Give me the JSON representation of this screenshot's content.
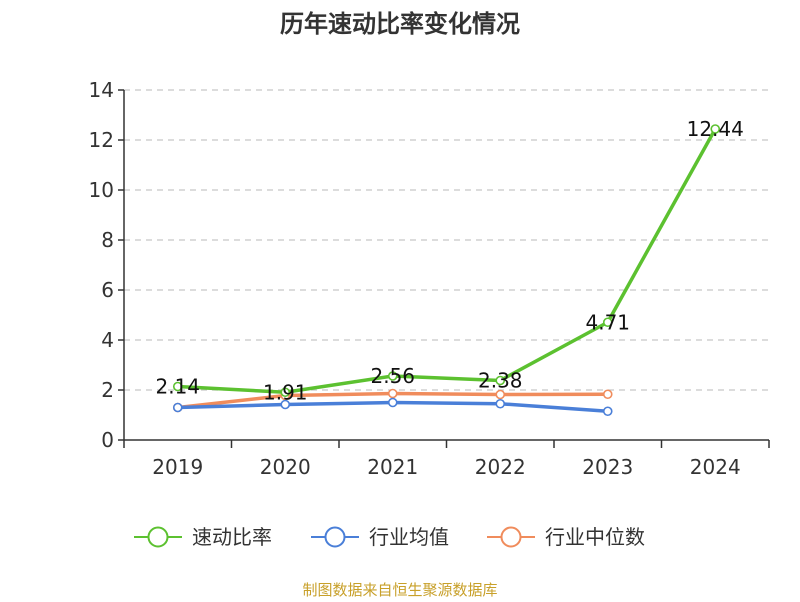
{
  "chart_data": {
    "type": "line",
    "title": "历年速动比率变化情况",
    "categories": [
      "2019",
      "2020",
      "2021",
      "2022",
      "2023",
      "2024"
    ],
    "ylim": [
      0,
      14
    ],
    "yticks": [
      0,
      2,
      4,
      6,
      8,
      10,
      12,
      14
    ],
    "grid": true,
    "legend_position": "bottom",
    "series": [
      {
        "name": "速动比率",
        "color": "#5cc130",
        "values": [
          2.14,
          1.91,
          2.56,
          2.38,
          4.71,
          12.44
        ],
        "labels": [
          "2.14",
          "1.91",
          "2.56",
          "2.38",
          "4.71",
          "12.44"
        ],
        "show_labels": true
      },
      {
        "name": "行业均值",
        "color": "#4a7fd8",
        "values": [
          1.3,
          1.42,
          1.5,
          1.45,
          1.15,
          null
        ],
        "show_labels": false
      },
      {
        "name": "行业中位数",
        "color": "#f08c5c",
        "values": [
          1.3,
          1.78,
          1.86,
          1.82,
          1.83,
          null
        ],
        "show_labels": false
      }
    ]
  },
  "footer": {
    "source": "制图数据来自恒生聚源数据库",
    "color": "#c8a02a"
  }
}
